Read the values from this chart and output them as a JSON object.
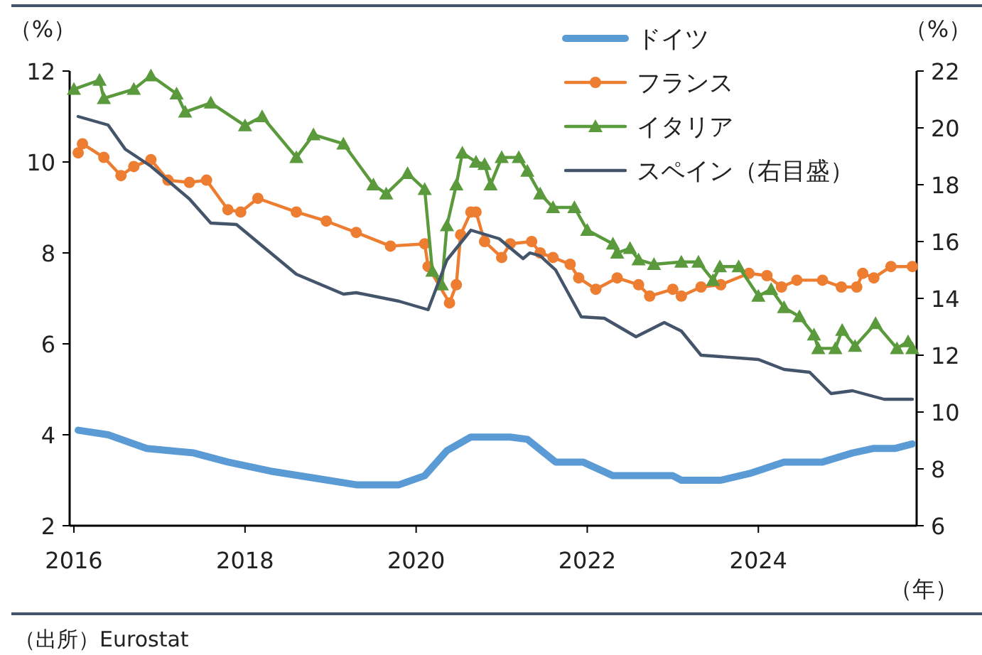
{
  "chart_data": {
    "type": "line",
    "ylabel": "（%）",
    "y2label": "（%）",
    "xlabel": "（年）",
    "annotations": [
      "（出所）Eurostat"
    ],
    "xlim": [
      2015.95,
      2025.85
    ],
    "xticks": [
      2016,
      2018,
      2020,
      2022,
      2024
    ],
    "ylim": [
      2,
      12
    ],
    "yticks": [
      2,
      4,
      6,
      8,
      10,
      12
    ],
    "y2lim": [
      6,
      22
    ],
    "y2ticks": [
      6,
      8,
      10,
      12,
      14,
      16,
      18,
      20,
      22
    ],
    "legend": "top right",
    "series": [
      {
        "name": "ドイツ",
        "color": "#5b9bd5",
        "marker": "none",
        "x": [
          2016.05,
          2016.4,
          2016.85,
          2017.4,
          2017.8,
          2018.3,
          2018.8,
          2019.3,
          2019.8,
          2020.1,
          2020.36,
          2020.64,
          2021.1,
          2021.3,
          2021.63,
          2021.95,
          2022.3,
          2023.0,
          2023.1,
          2023.56,
          2023.9,
          2024.3,
          2024.75,
          2025.1,
          2025.35,
          2025.6,
          2025.8
        ],
        "values": [
          4.1,
          4.0,
          3.7,
          3.6,
          3.4,
          3.2,
          3.05,
          2.9,
          2.9,
          3.1,
          3.65,
          3.95,
          3.95,
          3.9,
          3.4,
          3.4,
          3.1,
          3.1,
          3.0,
          3.0,
          3.15,
          3.4,
          3.4,
          3.6,
          3.7,
          3.7,
          3.8
        ]
      },
      {
        "name": "フランス",
        "color": "#ed7d31",
        "marker": "circle",
        "x": [
          2016.05,
          2016.1,
          2016.35,
          2016.55,
          2016.7,
          2016.9,
          2017.1,
          2017.35,
          2017.55,
          2017.8,
          2017.95,
          2018.15,
          2018.6,
          2018.95,
          2019.3,
          2019.7,
          2020.1,
          2020.14,
          2020.39,
          2020.47,
          2020.52,
          2020.64,
          2020.7,
          2020.8,
          2021.0,
          2021.1,
          2021.35,
          2021.45,
          2021.6,
          2021.8,
          2021.9,
          2022.1,
          2022.35,
          2022.6,
          2022.73,
          2023.0,
          2023.1,
          2023.33,
          2023.56,
          2023.89,
          2024.1,
          2024.27,
          2024.45,
          2024.75,
          2024.97,
          2025.15,
          2025.22,
          2025.35,
          2025.55,
          2025.8
        ],
        "values": [
          10.2,
          10.4,
          10.1,
          9.7,
          9.9,
          10.05,
          9.6,
          9.55,
          9.6,
          8.95,
          8.9,
          9.2,
          8.9,
          8.7,
          8.45,
          8.15,
          8.2,
          7.7,
          6.9,
          7.3,
          8.4,
          8.9,
          8.9,
          8.25,
          7.9,
          8.2,
          8.25,
          8.0,
          7.9,
          7.75,
          7.45,
          7.2,
          7.45,
          7.3,
          7.05,
          7.2,
          7.05,
          7.25,
          7.3,
          7.55,
          7.5,
          7.25,
          7.4,
          7.4,
          7.25,
          7.25,
          7.55,
          7.45,
          7.7,
          7.7
        ]
      },
      {
        "name": "イタリア",
        "color": "#5a9a3c",
        "marker": "triangle",
        "x": [
          2016.0,
          2016.3,
          2016.35,
          2016.7,
          2016.9,
          2017.2,
          2017.3,
          2017.6,
          2018.0,
          2018.2,
          2018.6,
          2018.8,
          2019.15,
          2019.5,
          2019.65,
          2019.9,
          2020.1,
          2020.19,
          2020.3,
          2020.36,
          2020.47,
          2020.54,
          2020.7,
          2020.8,
          2020.87,
          2021.0,
          2021.2,
          2021.3,
          2021.45,
          2021.6,
          2021.85,
          2022.0,
          2022.3,
          2022.35,
          2022.5,
          2022.6,
          2022.78,
          2023.1,
          2023.3,
          2023.47,
          2023.55,
          2023.77,
          2024.0,
          2024.15,
          2024.3,
          2024.48,
          2024.65,
          2024.7,
          2024.9,
          2024.98,
          2025.13,
          2025.37,
          2025.62,
          2025.75,
          2025.8
        ],
        "values": [
          11.6,
          11.8,
          11.4,
          11.6,
          11.9,
          11.5,
          11.1,
          11.3,
          10.8,
          11.0,
          10.1,
          10.6,
          10.4,
          9.5,
          9.3,
          9.75,
          9.4,
          7.6,
          7.3,
          8.6,
          9.5,
          10.2,
          10.0,
          9.95,
          9.5,
          10.1,
          10.1,
          9.8,
          9.3,
          9.0,
          9.0,
          8.5,
          8.2,
          8.0,
          8.1,
          7.85,
          7.75,
          7.8,
          7.8,
          7.4,
          7.7,
          7.7,
          7.05,
          7.2,
          6.8,
          6.6,
          6.2,
          5.9,
          5.9,
          6.3,
          5.95,
          6.45,
          5.9,
          6.05,
          5.9
        ]
      },
      {
        "name": "スペイン（右目盛）",
        "color": "#44546a",
        "marker": "none",
        "axis": "y2",
        "x": [
          2016.05,
          2016.4,
          2016.6,
          2016.9,
          2017.35,
          2017.6,
          2017.9,
          2018.2,
          2018.6,
          2019.15,
          2019.3,
          2019.8,
          2020.14,
          2020.36,
          2020.64,
          2020.97,
          2021.25,
          2021.33,
          2021.45,
          2021.63,
          2021.93,
          2022.2,
          2022.57,
          2022.9,
          2023.1,
          2023.33,
          2023.56,
          2024.0,
          2024.3,
          2024.6,
          2024.85,
          2025.1,
          2025.47,
          2025.8
        ],
        "values": [
          20.4,
          20.1,
          19.25,
          18.65,
          17.5,
          16.65,
          16.6,
          15.85,
          14.85,
          14.15,
          14.2,
          13.9,
          13.6,
          15.35,
          16.4,
          16.1,
          15.4,
          15.6,
          15.5,
          15.0,
          13.35,
          13.3,
          12.65,
          13.15,
          12.85,
          12.0,
          11.95,
          11.85,
          11.5,
          11.4,
          10.65,
          10.75,
          10.45,
          10.45
        ]
      }
    ]
  }
}
